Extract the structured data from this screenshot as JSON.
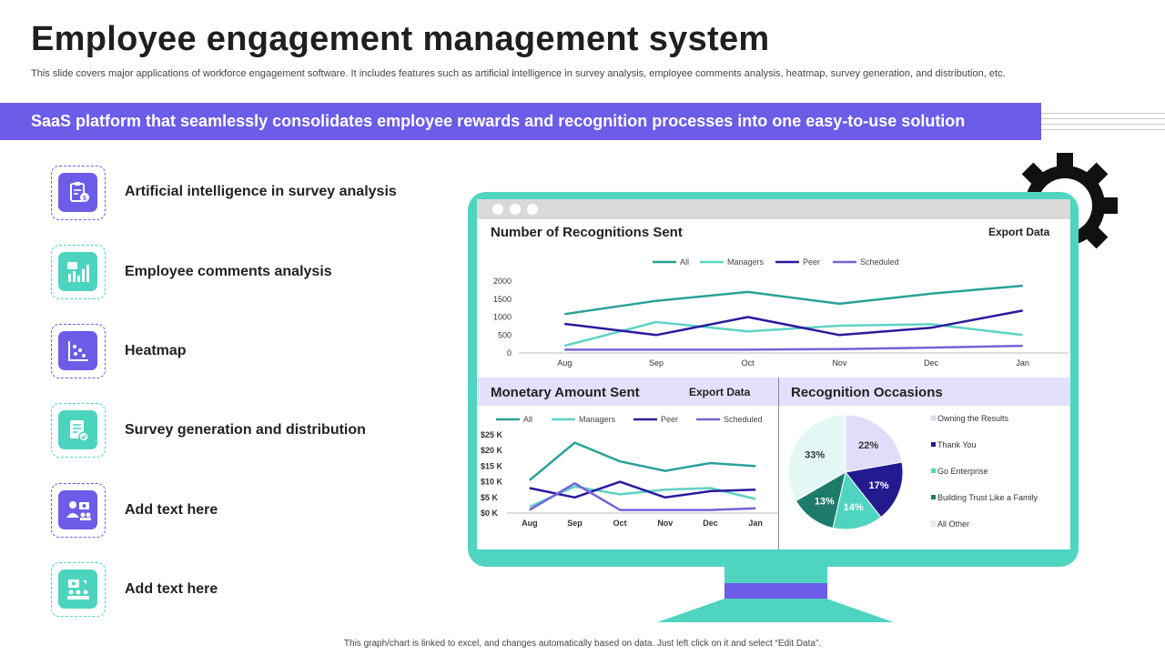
{
  "header": {
    "title": "Employee engagement management system",
    "subtitle": "This slide covers major applications of workforce engagement software. It includes features such as artificial intelligence in survey analysis, employee comments analysis, heatmap, survey generation, and distribution, etc."
  },
  "banner": {
    "text": "SaaS platform that seamlessly consolidates employee rewards and recognition processes into one easy-to-use solution"
  },
  "features": [
    {
      "label": "Artificial intelligence in survey analysis",
      "icon": "survey-ai-icon"
    },
    {
      "label": "Employee comments analysis",
      "icon": "comments-analysis-icon"
    },
    {
      "label": "Heatmap",
      "icon": "heatmap-icon"
    },
    {
      "label": "Survey generation and distribution",
      "icon": "survey-document-icon"
    },
    {
      "label": "Add text here",
      "icon": "team-presentation-icon"
    },
    {
      "label": "Add text here",
      "icon": "team-meeting-icon"
    }
  ],
  "colors": {
    "accent_purple": "#6c5ce7",
    "accent_teal": "#4fd4c0",
    "band_lilac": "#e3e0fb",
    "series_all": "#2aa198",
    "series_managers": "#5ed3c6",
    "series_peer": "#2a1a9e",
    "series_scheduled": "#7563d6"
  },
  "dashboard": {
    "recognitions": {
      "title": "Number of Recognitions Sent",
      "export_label": "Export  Data"
    },
    "monetary": {
      "title": "Monetary Amount Sent",
      "export_label": "Export Data"
    },
    "occasions": {
      "title": "Recognition Occasions"
    }
  },
  "footer": {
    "text": "This graph/chart is linked to excel, and changes automatically based on data. Just left click on it and select “Edit Data”."
  },
  "chart_data": [
    {
      "type": "line",
      "title": "Number of Recognitions Sent",
      "categories": [
        "Aug",
        "Sep",
        "Oct",
        "Nov",
        "Dec",
        "Jan"
      ],
      "y_ticks": [
        "0",
        "500",
        "1000",
        "1500",
        "2000"
      ],
      "ylim": [
        0,
        2000
      ],
      "legend_position": "top",
      "series": [
        {
          "name": "All",
          "color": "#2aa198",
          "values": [
            1080,
            1450,
            1700,
            1370,
            1650,
            1870
          ]
        },
        {
          "name": "Managers",
          "color": "#5ed3c6",
          "values": [
            200,
            860,
            600,
            760,
            800,
            500
          ]
        },
        {
          "name": "Peer",
          "color": "#2a1a9e",
          "values": [
            810,
            500,
            1000,
            500,
            700,
            1180
          ]
        },
        {
          "name": "Scheduled",
          "color": "#7563d6",
          "values": [
            90,
            90,
            90,
            110,
            150,
            200
          ]
        }
      ]
    },
    {
      "type": "line",
      "title": "Monetary Amount Sent",
      "categories": [
        "Aug",
        "Sep",
        "Oct",
        "Nov",
        "Dec",
        "Jan"
      ],
      "y_ticks": [
        "$0 K",
        "$5 K",
        "$10 K",
        "$15 K",
        "$20 K",
        "$25 K"
      ],
      "ylim": [
        0,
        25
      ],
      "legend_position": "top",
      "series": [
        {
          "name": "All",
          "color": "#2aa198",
          "values": [
            10.5,
            22.5,
            16.5,
            13.5,
            16,
            15
          ]
        },
        {
          "name": "Managers",
          "color": "#5ed3c6",
          "values": [
            2,
            8.5,
            6,
            7.5,
            8,
            4.5
          ]
        },
        {
          "name": "Peer",
          "color": "#2a1a9e",
          "values": [
            8,
            5,
            10,
            5,
            7,
            7.5
          ]
        },
        {
          "name": "Scheduled",
          "color": "#7563d6",
          "values": [
            1,
            9.5,
            1,
            1,
            1,
            1.5
          ]
        }
      ]
    },
    {
      "type": "pie",
      "title": "Recognition Occasions",
      "legend_position": "right",
      "slices": [
        {
          "label": "Owning the Results",
          "value": 22,
          "display": "22%",
          "color": "#e0dcf9"
        },
        {
          "label": "Thank You",
          "value": 17,
          "display": "17%",
          "color": "#241a8f"
        },
        {
          "label": "Go Enterprise",
          "value": 14,
          "display": "14%",
          "color": "#4fd4c0"
        },
        {
          "label": "Building Trust Like a Family",
          "value": 13,
          "display": "13%",
          "color": "#1e7a6a"
        },
        {
          "label": "All Other",
          "value": 33,
          "display": "33%",
          "color": "#e3f8f5"
        }
      ]
    }
  ]
}
